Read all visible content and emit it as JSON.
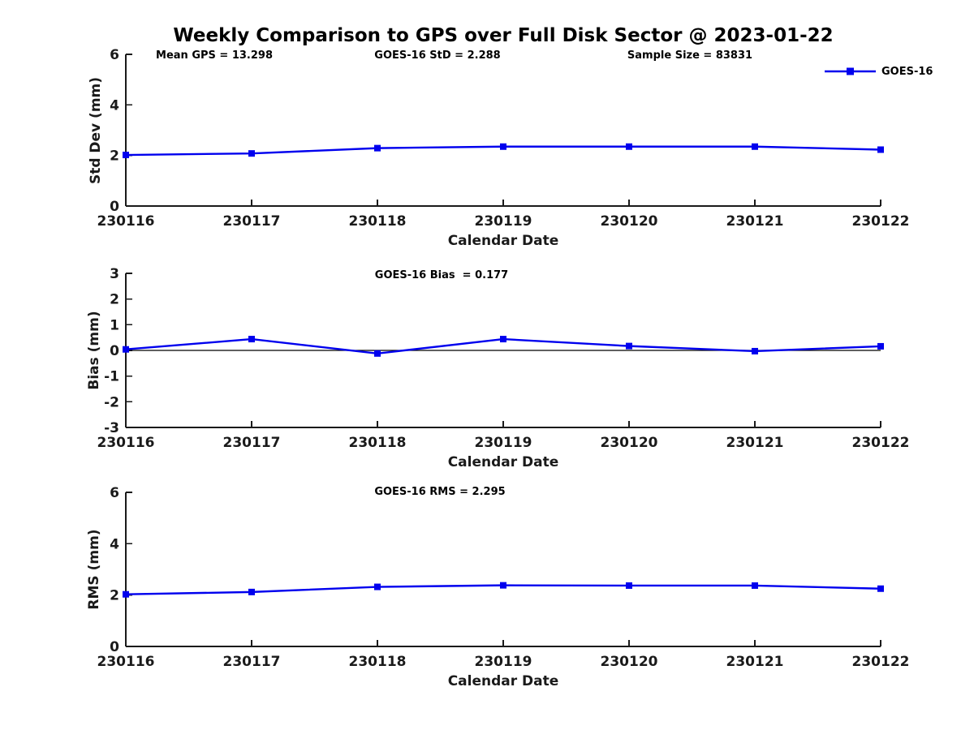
{
  "header": {
    "title": "Weekly Comparison to GPS over Full Disk Sector @ 2023-01-22"
  },
  "legend": {
    "label": "GOES-16",
    "color": "#0000EE",
    "position": "top-right",
    "marker": "filled-square"
  },
  "chart_data": [
    {
      "id": "std-dev-panel",
      "type": "line",
      "annotations": [
        {
          "text": "Mean GPS = 13.298"
        },
        {
          "text": "GOES-16 StD = 2.288"
        },
        {
          "text": "Sample Size = 83831"
        }
      ],
      "categories": [
        "230116",
        "230117",
        "230118",
        "230119",
        "230120",
        "230121",
        "230122"
      ],
      "series": [
        {
          "name": "GOES-16",
          "color": "#0000EE",
          "values": [
            2.02,
            2.08,
            2.29,
            2.35,
            2.35,
            2.35,
            2.23
          ]
        }
      ],
      "xlabel": "Calendar Date",
      "ylabel": "Std Dev (mm)",
      "ylim": [
        0,
        6
      ],
      "yticks": [
        0,
        2,
        4,
        6
      ],
      "grid": false
    },
    {
      "id": "bias-panel",
      "type": "line",
      "annotations": [
        {
          "text": "GOES-16 Bias  = 0.177"
        }
      ],
      "categories": [
        "230116",
        "230117",
        "230118",
        "230119",
        "230120",
        "230121",
        "230122"
      ],
      "series": [
        {
          "name": "GOES-16",
          "color": "#0000EE",
          "values": [
            0.04,
            0.44,
            -0.12,
            0.44,
            0.17,
            -0.03,
            0.16
          ]
        }
      ],
      "xlabel": "Calendar Date",
      "ylabel": "Bias (mm)",
      "ylim": [
        -3,
        3
      ],
      "yticks": [
        -3,
        -2,
        -1,
        0,
        1,
        2,
        3
      ],
      "zero_line": true,
      "grid": false
    },
    {
      "id": "rms-panel",
      "type": "line",
      "annotations": [
        {
          "text": "GOES-16 RMS = 2.295"
        }
      ],
      "categories": [
        "230116",
        "230117",
        "230118",
        "230119",
        "230120",
        "230121",
        "230122"
      ],
      "series": [
        {
          "name": "GOES-16",
          "color": "#0000EE",
          "values": [
            2.03,
            2.12,
            2.32,
            2.38,
            2.37,
            2.37,
            2.25
          ]
        }
      ],
      "xlabel": "Calendar Date",
      "ylabel": "RMS (mm)",
      "ylim": [
        0,
        6
      ],
      "yticks": [
        0,
        2,
        4,
        6
      ],
      "grid": false
    }
  ]
}
